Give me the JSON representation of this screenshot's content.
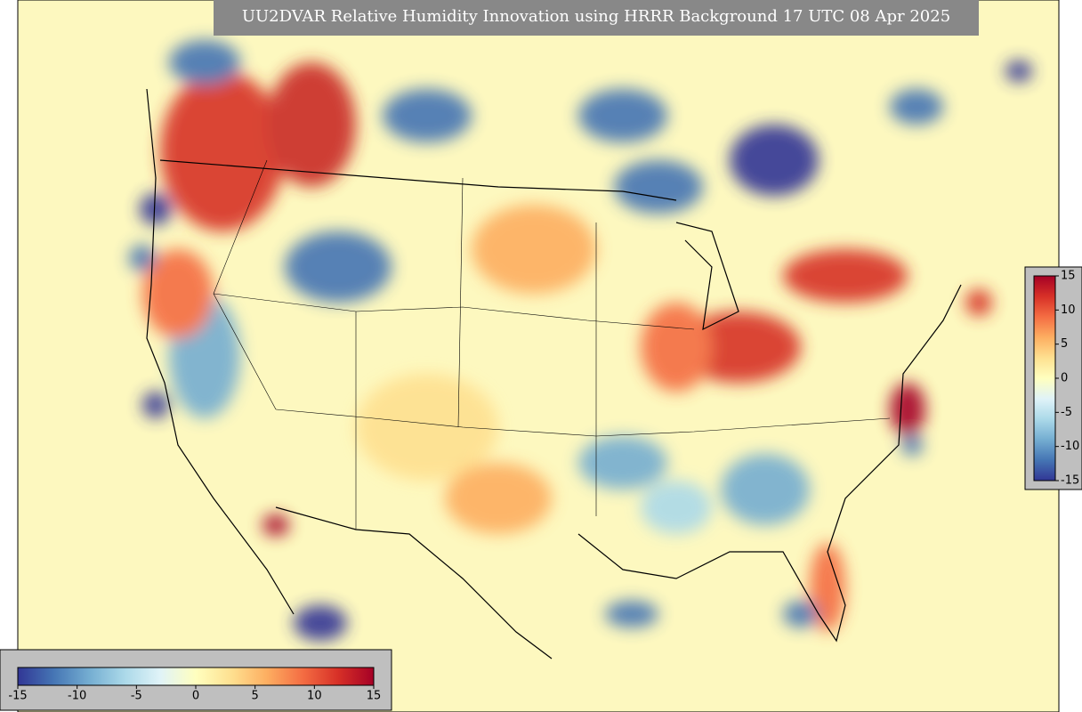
{
  "title": "UU2DVAR Relative Humidity Innovation using HRRR Background 17 UTC 08 Apr 2025",
  "colorbar_bottom": {
    "range": [
      -15,
      15
    ],
    "ticks": [
      -15,
      -10,
      -5,
      0,
      5,
      10,
      15
    ]
  },
  "colorbar_right": {
    "range": [
      -15,
      15
    ],
    "ticks": [
      15,
      10,
      5,
      0,
      -5,
      -10,
      -15
    ]
  }
}
